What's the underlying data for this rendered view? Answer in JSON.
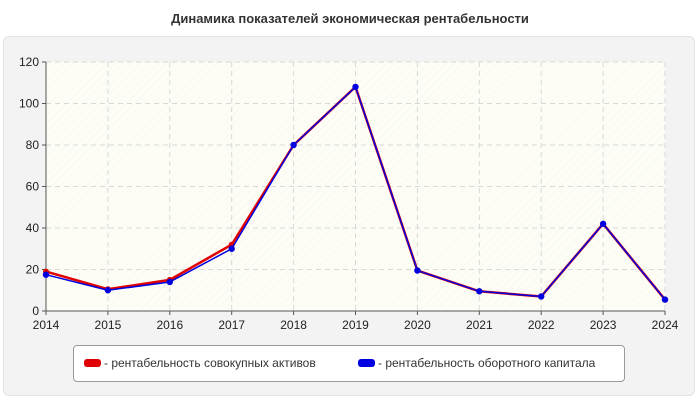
{
  "chart_data": {
    "type": "line",
    "title": "Динамика показателей экономическая рентабельности",
    "xlabel": "",
    "ylabel": "",
    "x": [
      "2014",
      "2015",
      "2016",
      "2017",
      "2018",
      "2019",
      "2020",
      "2021",
      "2022",
      "2023",
      "2024"
    ],
    "ylim": [
      0,
      120
    ],
    "yticks": [
      "0",
      "20",
      "40",
      "60",
      "80",
      "100",
      "120"
    ],
    "grid": true,
    "legend_position": "bottom",
    "series": [
      {
        "name": "- рентабельность совокупных активов",
        "color": "#e00000",
        "values": [
          19,
          10.5,
          15,
          32,
          80,
          108,
          19.5,
          9.5,
          7,
          42,
          5.5
        ]
      },
      {
        "name": "- рентабельность оборотного капитала",
        "color": "#0000e0",
        "values": [
          17.5,
          10,
          14,
          30,
          80,
          108,
          19.5,
          9.5,
          7,
          42,
          5.5
        ]
      }
    ]
  }
}
